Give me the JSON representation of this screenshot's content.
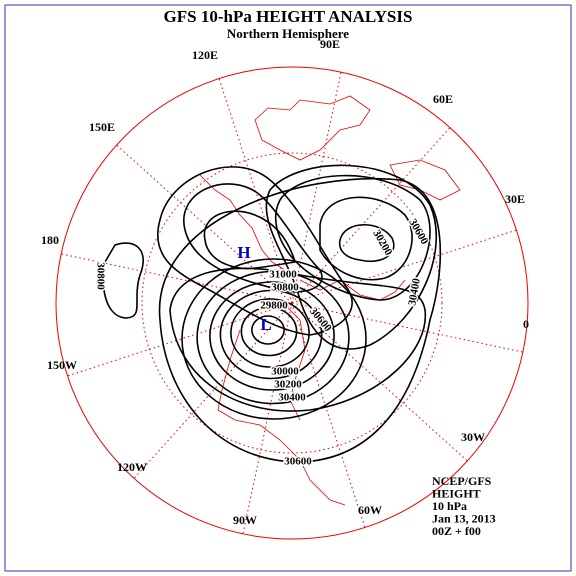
{
  "title": "GFS 10-hPa HEIGHT ANALYSIS",
  "subtitle": "Northern Hemisphere",
  "longitudes": [
    "90E",
    "60E",
    "30E",
    "0",
    "30W",
    "60W",
    "90W",
    "120W",
    "150W",
    "180",
    "150E",
    "120E"
  ],
  "contour_labels": [
    "30800",
    "31000",
    "30800",
    "29800",
    "30600",
    "30000",
    "30200",
    "30400",
    "30600",
    "30200",
    "30600",
    "30400"
  ],
  "markers": {
    "high": "H",
    "low": "L"
  },
  "info": [
    "NCEP/GFS",
    "HEIGHT",
    "10 hPa",
    "Jan 13, 2013",
    "00Z + f00"
  ]
}
